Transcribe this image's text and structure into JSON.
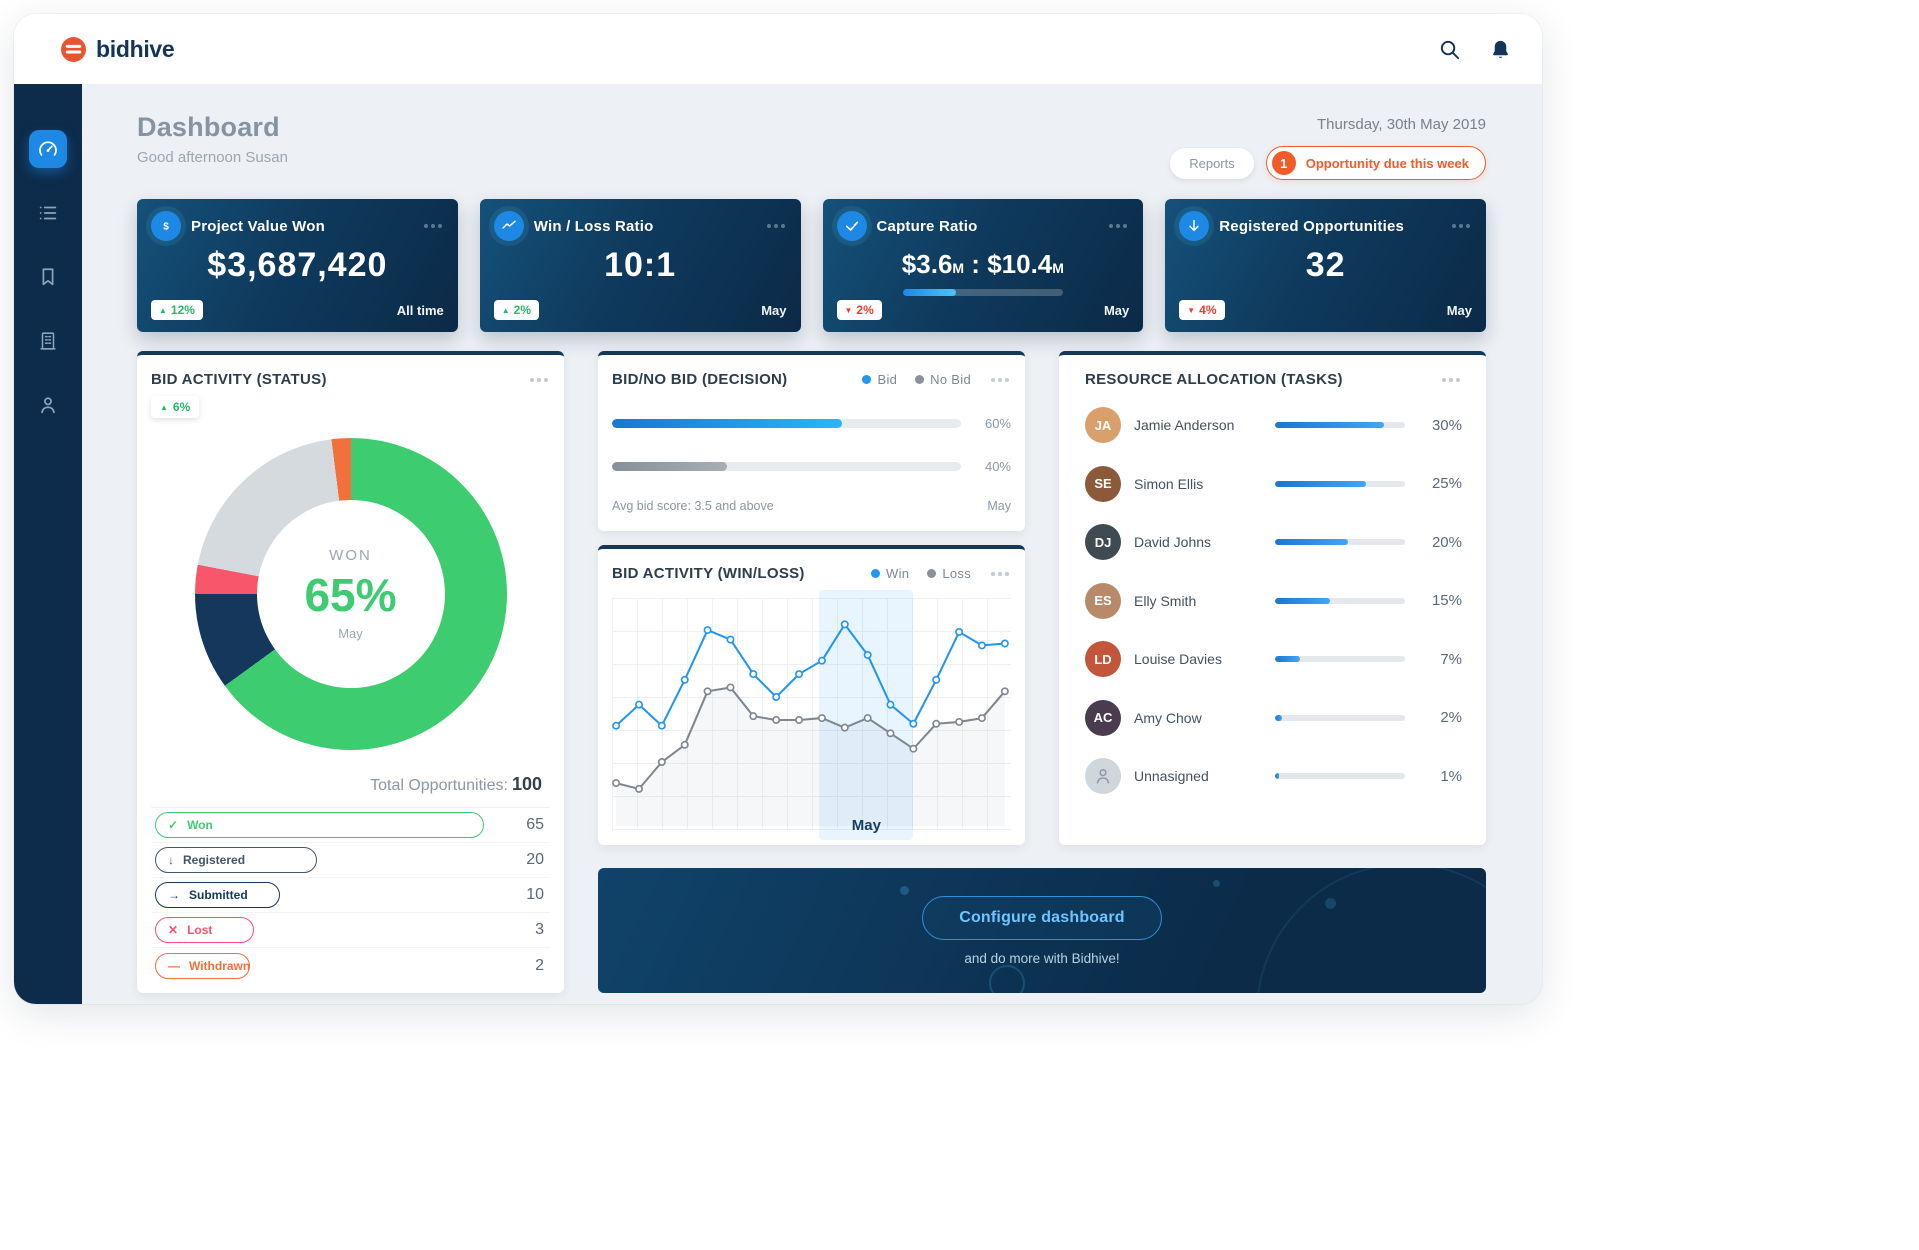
{
  "topbar": {
    "brand": "bidhive"
  },
  "sidebar": {
    "items": [
      {
        "name": "dashboard",
        "icon": "gauge",
        "active": true
      },
      {
        "name": "bids-list",
        "icon": "list",
        "active": false
      },
      {
        "name": "saved",
        "icon": "bookmark",
        "active": false
      },
      {
        "name": "organisation",
        "icon": "building",
        "active": false
      },
      {
        "name": "profile",
        "icon": "user",
        "active": false
      }
    ]
  },
  "header": {
    "title": "Dashboard",
    "greeting": "Good afternoon Susan",
    "date": "Thursday, 30th May 2019",
    "reports_label": "Reports",
    "alert": {
      "count": "1",
      "label": "Opportunity due this week"
    }
  },
  "kpis": [
    {
      "id": "project-value-won",
      "title": "Project Value Won",
      "icon": "dollar",
      "value": "$3,687,420",
      "delta": "12%",
      "delta_dir": "up",
      "period": "All time"
    },
    {
      "id": "win-loss-ratio",
      "title": "Win / Loss Ratio",
      "icon": "trend",
      "value": "10:1",
      "delta": "2%",
      "delta_dir": "up",
      "period": "May"
    },
    {
      "id": "capture-ratio",
      "title": "Capture Ratio",
      "icon": "check",
      "ratio": {
        "a": "$3.6",
        "b": "$10.4",
        "unit": "M",
        "separator": " : ",
        "progress": 33
      },
      "delta": "2%",
      "delta_dir": "down",
      "period": "May"
    },
    {
      "id": "registered-opportunities",
      "title": "Registered Opportunities",
      "icon": "arrow-down",
      "value": "32",
      "delta": "4%",
      "delta_dir": "down",
      "period": "May"
    }
  ],
  "status": {
    "title": "BID ACTIVITY (STATUS)",
    "delta": "6%",
    "donut": {
      "center_label": "WON",
      "center_value": "65%",
      "center_period": "May",
      "segments": [
        {
          "label": "Won",
          "value": 65,
          "color": "#3ecc71"
        },
        {
          "label": "Submitted",
          "value": 10,
          "color": "#16375c"
        },
        {
          "label": "Lost",
          "value": 3,
          "color": "#f8566b"
        },
        {
          "label": "Registered",
          "value": 20,
          "color": "#d5dade"
        },
        {
          "label": "Withdrawn",
          "value": 2,
          "color": "#f2703a"
        }
      ]
    },
    "total_label": "Total Opportunities:",
    "total_value": "100",
    "rows": [
      {
        "label": "Won",
        "value": 65,
        "color": "#3ecc71",
        "icon": "check"
      },
      {
        "label": "Registered",
        "value": 20,
        "color": "#44546a",
        "icon": "arrow-down"
      },
      {
        "label": "Submitted",
        "value": 10,
        "color": "#16375c",
        "icon": "arrow-right"
      },
      {
        "label": "Lost",
        "value": 3,
        "color": "#f4536e",
        "icon": "cross"
      },
      {
        "label": "Withdrawn",
        "value": 2,
        "color": "#f2703a",
        "icon": "dash"
      }
    ]
  },
  "decision": {
    "title": "BID/NO BID (DECISION)",
    "legend": {
      "bid": "Bid",
      "nobid": "No Bid"
    },
    "bars": [
      {
        "name": "Bid",
        "kind": "bid",
        "fill": 66,
        "label": "60%"
      },
      {
        "name": "No Bid",
        "kind": "nobid",
        "fill": 33,
        "label": "40%"
      }
    ],
    "footer_left": "Avg bid score: 3.5 and above",
    "footer_right": "May"
  },
  "winloss": {
    "title": "BID ACTIVITY (WIN/LOSS)",
    "legend": {
      "win": "Win",
      "loss": "Loss"
    },
    "month_label": "May",
    "colors": {
      "win": "#2196f3",
      "loss": "#7e8790"
    }
  },
  "resources": {
    "title": "RESOURCE ALLOCATION (TASKS)",
    "people": [
      {
        "name": "Jamie Anderson",
        "pct_label": "30%",
        "value": 30,
        "initials": "JA",
        "color": "#d9a06b"
      },
      {
        "name": "Simon Ellis",
        "pct_label": "25%",
        "value": 25,
        "initials": "SE",
        "color": "#8a5a3b"
      },
      {
        "name": "David Johns",
        "pct_label": "20%",
        "value": 20,
        "initials": "DJ",
        "color": "#3f4a52"
      },
      {
        "name": "Elly Smith",
        "pct_label": "15%",
        "value": 15,
        "initials": "ES",
        "color": "#b98a6a"
      },
      {
        "name": "Louise Davies",
        "pct_label": "7%",
        "value": 7,
        "initials": "LD",
        "color": "#c2553a"
      },
      {
        "name": "Amy Chow",
        "pct_label": "2%",
        "value": 2,
        "initials": "AC",
        "color": "#4a3b4f"
      },
      {
        "name": "Unnasigned",
        "pct_label": "1%",
        "value": 1,
        "initials": "",
        "color": "#cfd6dc"
      }
    ]
  },
  "banner": {
    "button_label": "Configure dashboard",
    "subtext": "and do more with Bidhive!"
  },
  "chart_data": [
    {
      "type": "pie",
      "title": "BID ACTIVITY (STATUS)",
      "labels": [
        "Won",
        "Registered",
        "Submitted",
        "Lost",
        "Withdrawn"
      ],
      "values": [
        65,
        20,
        10,
        3,
        2
      ],
      "center_label": "WON 65%",
      "period": "May",
      "total": 100
    },
    {
      "type": "bar",
      "title": "BID/NO BID (DECISION)",
      "categories": [
        "Bid",
        "No Bid"
      ],
      "values": [
        60,
        40
      ],
      "unit": "%",
      "period": "May",
      "note": "Avg bid score: 3.5 and above"
    },
    {
      "type": "line",
      "title": "BID ACTIVITY (WIN/LOSS)",
      "highlight": "May",
      "ylim": [
        0,
        100
      ],
      "series": [
        {
          "name": "Win",
          "values": [
            46,
            57,
            46,
            70,
            96,
            91,
            73,
            61,
            73,
            80,
            99,
            83,
            57,
            47,
            70,
            95,
            88,
            89
          ]
        },
        {
          "name": "Loss",
          "values": [
            16,
            13,
            27,
            36,
            64,
            66,
            51,
            49,
            49,
            50,
            45,
            50,
            42,
            34,
            47,
            48,
            50,
            64
          ]
        }
      ]
    },
    {
      "type": "bar",
      "title": "RESOURCE ALLOCATION (TASKS)",
      "categories": [
        "Jamie Anderson",
        "Simon Ellis",
        "David Johns",
        "Elly Smith",
        "Louise Davies",
        "Amy Chow",
        "Unnasigned"
      ],
      "values": [
        30,
        25,
        20,
        15,
        7,
        2,
        1
      ],
      "unit": "%"
    }
  ]
}
